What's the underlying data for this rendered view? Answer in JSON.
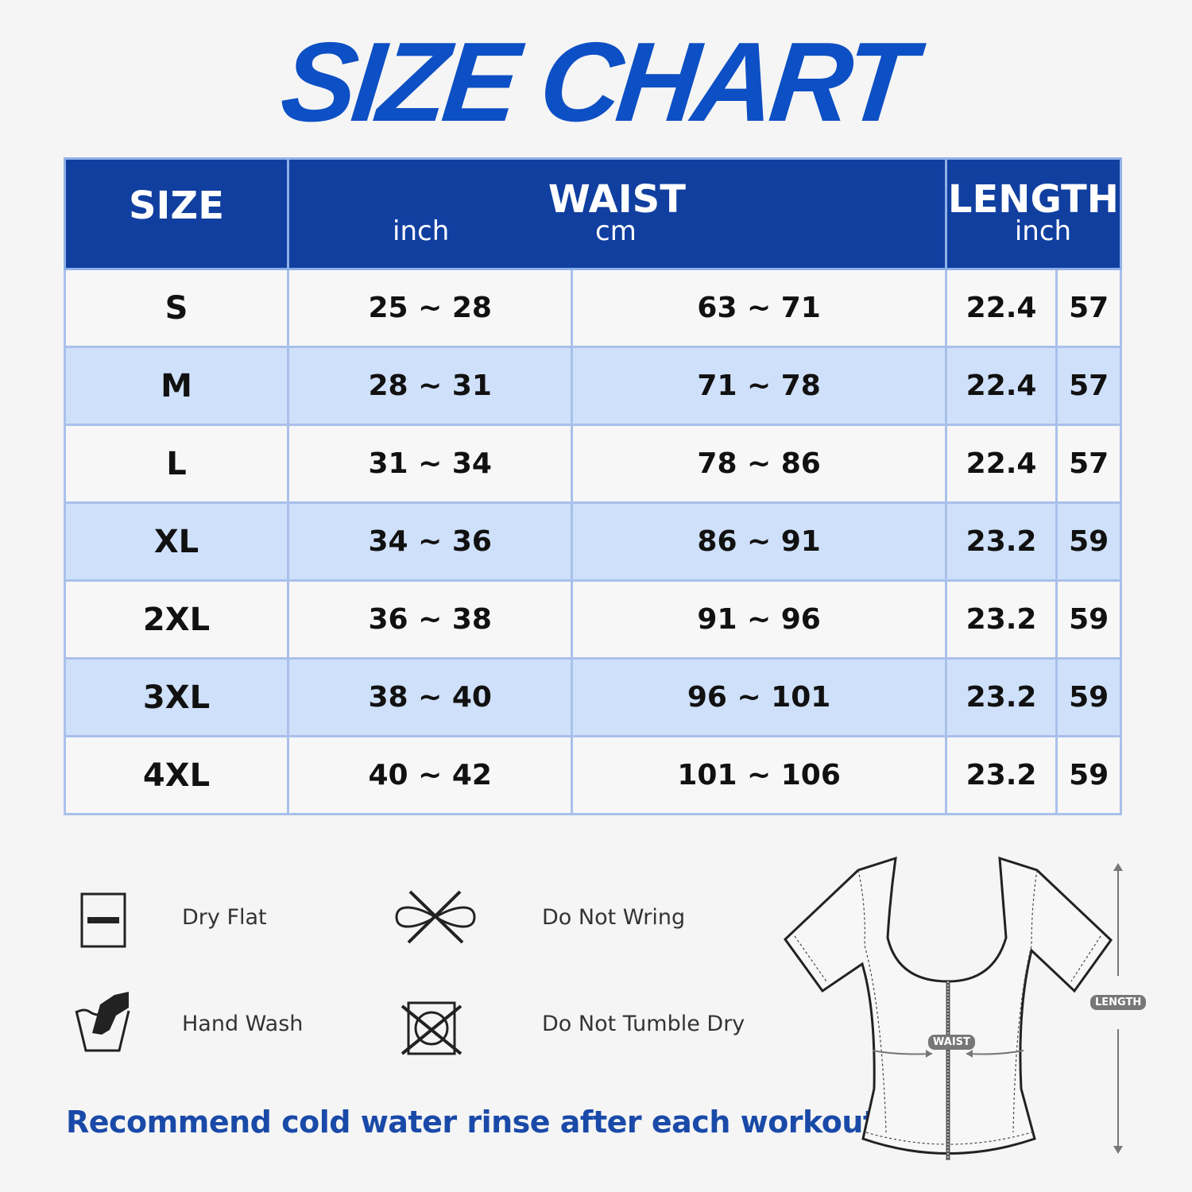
{
  "title": "SIZE CHART",
  "table": {
    "headers": {
      "size": "SIZE",
      "waist": "WAIST",
      "length": "LENGTH",
      "inch": "inch",
      "cm": "cm"
    },
    "rows": [
      {
        "size": "S",
        "waist_in": "25 ~ 28",
        "waist_cm": "63 ~ 71",
        "length_in": "22.4",
        "length_cm": "57"
      },
      {
        "size": "M",
        "waist_in": "28 ~ 31",
        "waist_cm": "71 ~ 78",
        "length_in": "22.4",
        "length_cm": "57"
      },
      {
        "size": "L",
        "waist_in": "31 ~ 34",
        "waist_cm": "78 ~ 86",
        "length_in": "22.4",
        "length_cm": "57"
      },
      {
        "size": "XL",
        "waist_in": "34 ~ 36",
        "waist_cm": "86 ~ 91",
        "length_in": "23.2",
        "length_cm": "59"
      },
      {
        "size": "2XL",
        "waist_in": "36 ~ 38",
        "waist_cm": "91 ~ 96",
        "length_in": "23.2",
        "length_cm": "59"
      },
      {
        "size": "3XL",
        "waist_in": "38 ~ 40",
        "waist_cm": "96 ~ 101",
        "length_in": "23.2",
        "length_cm": "59"
      },
      {
        "size": "4XL",
        "waist_in": "40 ~ 42",
        "waist_cm": "101 ~ 106",
        "length_in": "23.2",
        "length_cm": "59"
      }
    ]
  },
  "care": [
    {
      "label": "Dry Flat",
      "icon": "dry-flat-icon"
    },
    {
      "label": "Do Not Wring",
      "icon": "do-not-wring-icon"
    },
    {
      "label": "Hand Wash",
      "icon": "hand-wash-icon"
    },
    {
      "label": "Do Not Tumble Dry",
      "icon": "do-not-tumble-dry-icon"
    }
  ],
  "note": "Recommend cold water rinse after each workout.",
  "diagram": {
    "waist_label": "WAIST",
    "length_label": "LENGTH"
  },
  "colors": {
    "title": "#0d4fc4",
    "header_bg": "#103fa0",
    "row_alt": "#cfe0fa",
    "note": "#1a4aa8"
  }
}
